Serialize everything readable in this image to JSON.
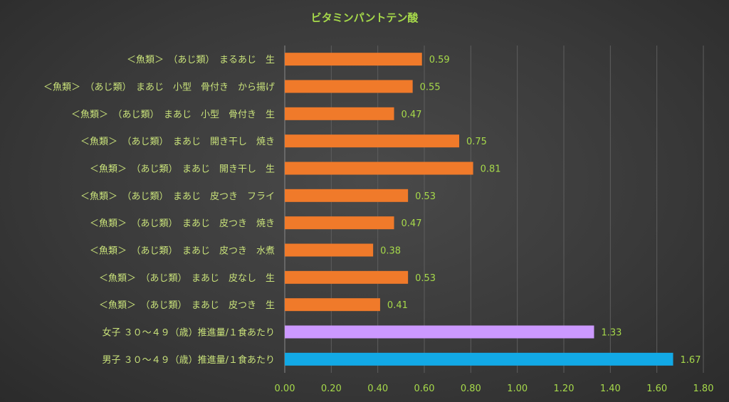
{
  "chart_data": {
    "type": "bar",
    "orientation": "horizontal",
    "title": "ビタミンパントテン酸",
    "xlabel": "",
    "ylabel": "",
    "xlim": [
      0,
      1.8
    ],
    "ticks": [
      "0.00",
      "0.20",
      "0.40",
      "0.60",
      "0.80",
      "1.00",
      "1.20",
      "1.40",
      "1.60",
      "1.80"
    ],
    "tick_values": [
      0,
      0.2,
      0.4,
      0.6,
      0.8,
      1.0,
      1.2,
      1.4,
      1.6,
      1.8
    ],
    "grid": true,
    "legend": "none",
    "categories": [
      "＜魚類＞　（あじ類）　まるあじ　生",
      "＜魚類＞　（あじ類）　まあじ　小型　骨付き　から揚げ",
      "＜魚類＞　（あじ類）　まあじ　小型　骨付き　生",
      "＜魚類＞　（あじ類）　まあじ　開き干し　焼き",
      "＜魚類＞　（あじ類）　まあじ　開き干し　生",
      "＜魚類＞　（あじ類）　まあじ　皮つき　フライ",
      "＜魚類＞　（あじ類）　まあじ　皮つき　焼き",
      "＜魚類＞　（あじ類）　まあじ　皮つき　水煮",
      "＜魚類＞　（あじ類）　まあじ　皮なし　生",
      "＜魚類＞　（あじ類）　まあじ　皮つき　生",
      "女子 ３０～４９（歳）推進量/１食あたり",
      "男子 ３０～４９（歳）推進量/１食あたり"
    ],
    "values": [
      0.59,
      0.55,
      0.47,
      0.75,
      0.81,
      0.53,
      0.47,
      0.38,
      0.53,
      0.41,
      1.33,
      1.67
    ],
    "value_labels": [
      "0.59",
      "0.55",
      "0.47",
      "0.75",
      "0.81",
      "0.53",
      "0.47",
      "0.38",
      "0.53",
      "0.41",
      "1.33",
      "1.67"
    ],
    "bar_colors": [
      "#f07a2a",
      "#f07a2a",
      "#f07a2a",
      "#f07a2a",
      "#f07a2a",
      "#f07a2a",
      "#f07a2a",
      "#f07a2a",
      "#f07a2a",
      "#f07a2a",
      "#cc99ff",
      "#12a9e6"
    ]
  }
}
